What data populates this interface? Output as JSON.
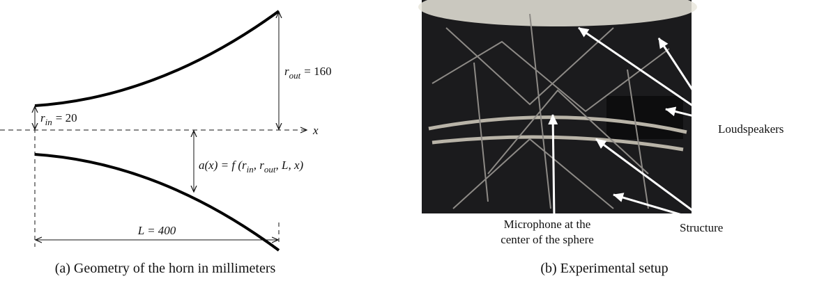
{
  "horn_diagram": {
    "axis_label": "x",
    "r_in": {
      "symbol": "r",
      "subscript": "in",
      "value": "= 20"
    },
    "r_out": {
      "symbol": "r",
      "subscript": "out",
      "value": "= 160"
    },
    "profile": {
      "lead": "a(x) = f (",
      "r1": "r",
      "s1": "in",
      "sep": ", ",
      "r2": "r",
      "s2": "out",
      "tail": ", L, x)"
    },
    "length": "L = 400",
    "caption": "(a) Geometry of the horn in millimeters"
  },
  "photo": {
    "labels": {
      "loudspeakers": "Loudspeakers",
      "microphone": [
        "Microphone at the",
        "center of the sphere"
      ],
      "structure": "Structure"
    },
    "caption": "(b) Experimental setup"
  }
}
